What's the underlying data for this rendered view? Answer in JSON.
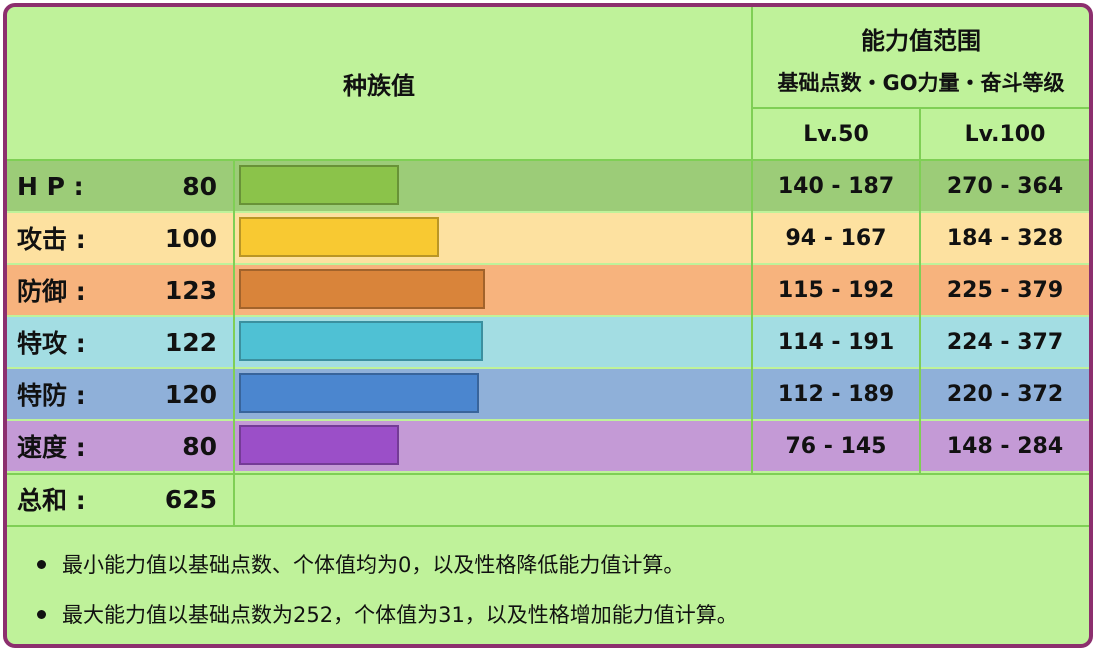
{
  "header": {
    "base_stats_title": "种族值",
    "range_title": "能力值范围",
    "range_subtitle": "基础点数・GO力量・奋斗等级",
    "lv50": "Lv.50",
    "lv100": "Lv.100"
  },
  "stats": [
    {
      "key": "hp",
      "label": "H P :",
      "value": 80,
      "lv50": "140 - 187",
      "lv100": "270 - 364",
      "row_color": "#9ccc78",
      "bar_color": "#8bc34a",
      "range_color": "#9ccc78"
    },
    {
      "key": "atk",
      "label": "攻击 :",
      "value": 100,
      "lv50": "94 - 167",
      "lv100": "184 - 328",
      "row_color": "#fde1a0",
      "bar_color": "#f8c932",
      "range_color": "#fde1a0"
    },
    {
      "key": "def",
      "label": "防御 :",
      "value": 123,
      "lv50": "115 - 192",
      "lv100": "225 - 379",
      "row_color": "#f7b37d",
      "bar_color": "#d9843a",
      "range_color": "#f7b37d"
    },
    {
      "key": "spa",
      "label": "特攻 :",
      "value": 122,
      "lv50": "114 - 191",
      "lv100": "224 - 377",
      "row_color": "#a3dde3",
      "bar_color": "#4fc1d4",
      "range_color": "#a3dde3"
    },
    {
      "key": "spd",
      "label": "特防 :",
      "value": 120,
      "lv50": "112 - 189",
      "lv100": "220 - 372",
      "row_color": "#8fb0d9",
      "bar_color": "#4b86cf",
      "range_color": "#8fb0d9"
    },
    {
      "key": "spe",
      "label": "速度 :",
      "value": 80,
      "lv50": "76 - 145",
      "lv100": "148 - 284",
      "row_color": "#c49ad6",
      "bar_color": "#9b4fc8",
      "range_color": "#c49ad6"
    }
  ],
  "total": {
    "label": "总和 :",
    "value": "625"
  },
  "notes": [
    "最小能力值以基础点数、个体值均为0，以及性格降低能力值计算。",
    "最大能力值以基础点数为252，个体值为31，以及性格增加能力值计算。"
  ],
  "colors": {
    "border": "#8c2f6e",
    "background": "#bff29a",
    "grid": "#7fcf55"
  },
  "bar_scale_max": 255
}
